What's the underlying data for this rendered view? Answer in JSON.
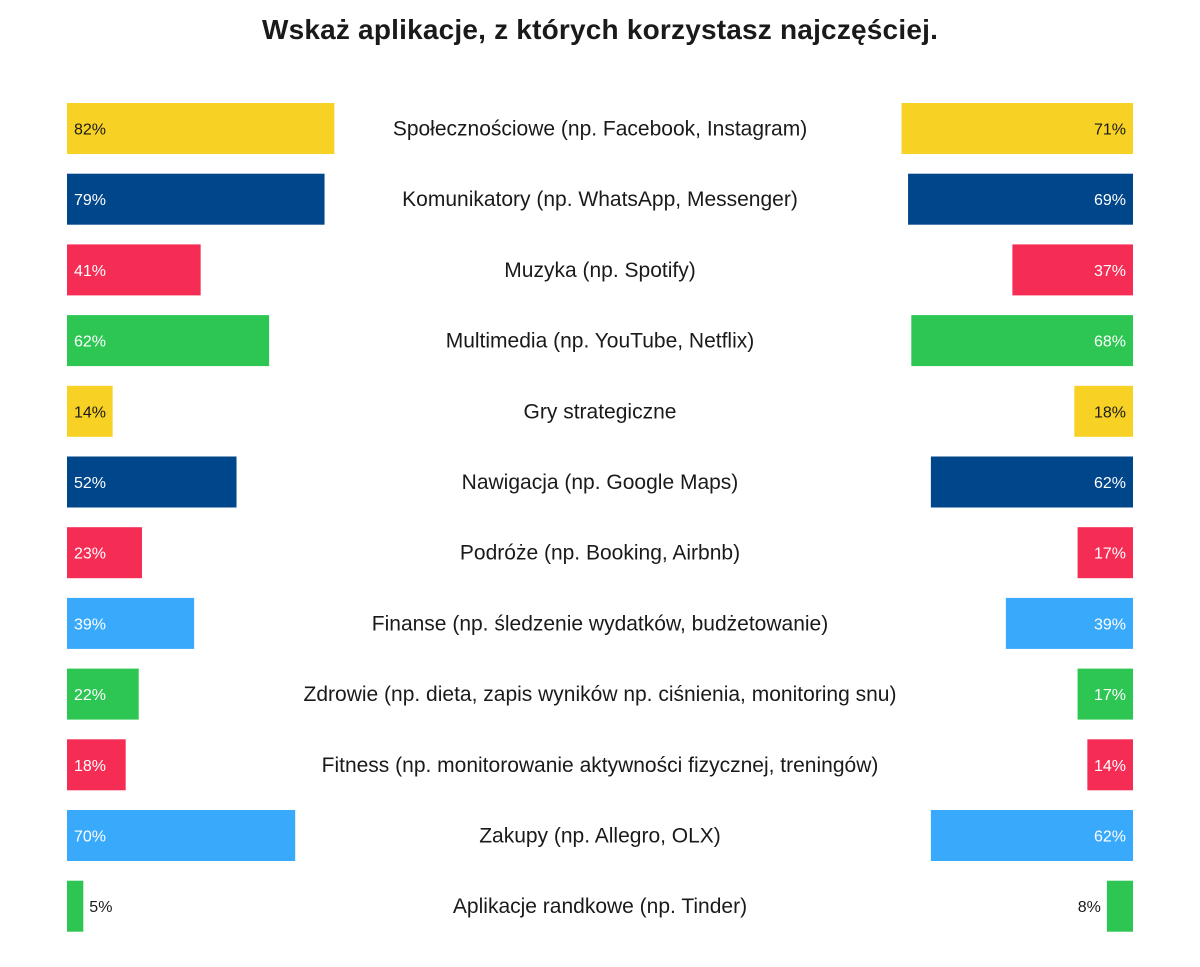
{
  "chart_data": {
    "type": "bar",
    "title": "Wskaż aplikacje, z których korzystasz najczęściej.",
    "xlim": [
      0,
      100
    ],
    "categories": [
      "Społecznościowe (np. Facebook, Instagram)",
      "Komunikatory (np. WhatsApp, Messenger)",
      "Muzyka (np. Spotify)",
      "Multimedia (np. YouTube, Netflix)",
      "Gry strategiczne",
      "Nawigacja (np. Google Maps)",
      "Podróże (np. Booking, Airbnb)",
      "Finanse (np. śledzenie wydatków, budżetowanie)",
      "Zdrowie (np. dieta, zapis wyników np. ciśnienia, monitoring snu)",
      "Fitness (np. monitorowanie aktywności fizycznej, treningów)",
      "Zakupy (np. Allegro, OLX)",
      "Aplikacje randkowe (np. Tinder)"
    ],
    "series": [
      {
        "side": "left",
        "values": [
          82,
          79,
          41,
          62,
          14,
          52,
          23,
          39,
          22,
          18,
          70,
          5
        ]
      },
      {
        "side": "right",
        "values": [
          71,
          69,
          37,
          68,
          18,
          62,
          17,
          39,
          17,
          14,
          62,
          8
        ]
      }
    ],
    "value_suffix": "%",
    "bar_colors": [
      "#f7d124",
      "#00468b",
      "#f52d55",
      "#2dc653",
      "#f7d124",
      "#00468b",
      "#f52d55",
      "#39a9fb",
      "#2dc653",
      "#f52d55",
      "#39a9fb",
      "#2dc653"
    ],
    "label_text_colors": [
      "#1a1a1a",
      "#ffffff",
      "#ffffff",
      "#ffffff",
      "#1a1a1a",
      "#ffffff",
      "#ffffff",
      "#ffffff",
      "#ffffff",
      "#ffffff",
      "#ffffff",
      "#1a1a1a"
    ],
    "grid": false,
    "legend": "none"
  }
}
